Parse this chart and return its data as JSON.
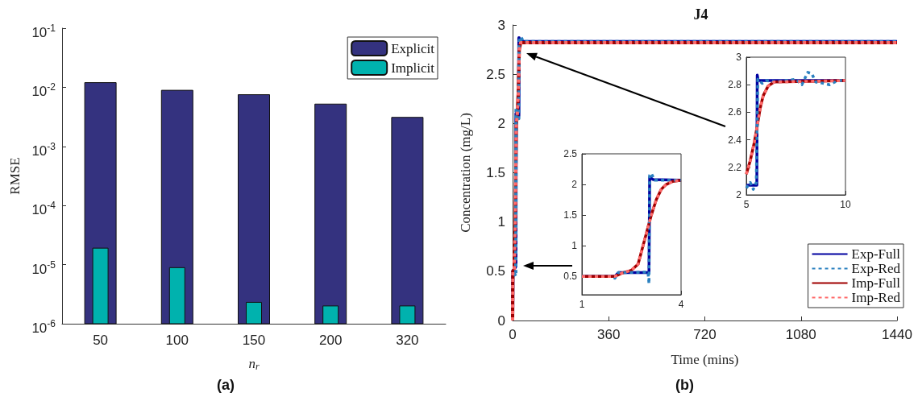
{
  "chart_data": [
    {
      "type": "bar",
      "xlabel": "n$_{r}$",
      "ylabel": "RMSE",
      "categories": [
        "50",
        "100",
        "150",
        "200",
        "320"
      ],
      "log": true,
      "ylim": [
        1e-06,
        0.1
      ],
      "yticks": [
        {
          "value": 1e-06,
          "label": "10$^{-6}$"
        },
        {
          "value": 1e-05,
          "label": "10$^{-5}$"
        },
        {
          "value": 0.0001,
          "label": "10$^{-4}$"
        },
        {
          "value": 0.001,
          "label": "10$^{-3}$"
        },
        {
          "value": 0.01,
          "label": "10$^{-2}$"
        },
        {
          "value": 0.1,
          "label": "10$^{-1}$"
        }
      ],
      "series": [
        {
          "name": "Explicit",
          "color": "#34327f",
          "values": [
            0.012,
            0.0089,
            0.0075,
            0.0052,
            0.0031
          ]
        },
        {
          "name": "Implicit",
          "color": "#00b2ae",
          "values": [
            1.9e-05,
            8.9e-06,
            2.3e-06,
            2e-06,
            2e-06
          ]
        }
      ],
      "legend": "top right",
      "annotations": [
        "(a)"
      ]
    },
    {
      "type": "line",
      "title": "J4",
      "xlabel": "Time (mins)",
      "ylabel": "Concentration (mg/L)",
      "xlim": [
        0,
        1440
      ],
      "xticks": [
        0,
        360,
        720,
        1080,
        1440
      ],
      "ylim": [
        0,
        3
      ],
      "yticks": [
        0,
        0.5,
        1,
        1.5,
        2,
        2.5,
        3
      ],
      "marker": "none",
      "legend": "bottom right",
      "annotations": [
        "(b)"
      ],
      "series": [
        {
          "name": "Exp-Full",
          "color": "#0000a0",
          "line_style": "solid",
          "x": [
            0,
            1,
            12,
            13,
            23,
            24,
            25,
            1440
          ],
          "values": [
            0,
            0.5,
            0.55,
            2.1,
            2.08,
            2.87,
            2.83,
            2.83
          ]
        },
        {
          "name": "Exp-Red",
          "color": "#2a80c0",
          "line_style": "dotted",
          "x": [
            0,
            1,
            12,
            13,
            23,
            24,
            30,
            40,
            1440
          ],
          "values": [
            0,
            0.5,
            0.45,
            2.15,
            2.05,
            2.82,
            2.88,
            2.83,
            2.83
          ]
        },
        {
          "name": "Imp-Full",
          "color": "#a00000",
          "line_style": "solid",
          "x": [
            0,
            1,
            6,
            10,
            14,
            17,
            21,
            25,
            30,
            1440
          ],
          "values": [
            0,
            0.5,
            0.52,
            1.0,
            2.0,
            2.07,
            2.3,
            2.75,
            2.82,
            2.82
          ]
        },
        {
          "name": "Imp-Red",
          "color": "#ff6a6a",
          "line_style": "dotted",
          "x": [
            0,
            1,
            6,
            10,
            14,
            17,
            21,
            25,
            30,
            1440
          ],
          "values": [
            0,
            0.5,
            0.52,
            1.0,
            2.0,
            2.07,
            2.3,
            2.75,
            2.82,
            2.82
          ]
        }
      ]
    },
    {
      "type": "line",
      "xlim": [
        1,
        4
      ],
      "xticks": [
        1,
        4
      ],
      "ylim": [
        0.2,
        2.5
      ],
      "yticks": [
        0.5,
        1,
        1.5,
        2,
        2.5
      ],
      "marker": "none",
      "series": [
        {
          "color": "#0000a0",
          "line_style": "solid",
          "x": [
            1,
            2.0,
            2.1,
            3.03,
            3.05,
            3.15,
            4
          ],
          "values": [
            0.5,
            0.5,
            0.56,
            0.56,
            2.12,
            2.08,
            2.07
          ]
        },
        {
          "color": "#2a80c0",
          "line_style": "dotted",
          "x": [
            1,
            1.9,
            2.0,
            2.1,
            3.0,
            3.03,
            3.05,
            3.1,
            3.2,
            4
          ],
          "values": [
            0.5,
            0.5,
            0.47,
            0.56,
            0.57,
            0.38,
            2.15,
            2.18,
            2.07,
            2.07
          ]
        },
        {
          "color": "#a00000",
          "line_style": "solid",
          "x": [
            1,
            2,
            2.2,
            2.5,
            2.7,
            2.85,
            3.0,
            3.1,
            3.25,
            3.4,
            3.55,
            3.75,
            4
          ],
          "values": [
            0.5,
            0.5,
            0.55,
            0.6,
            0.7,
            1.0,
            1.3,
            1.5,
            1.75,
            1.92,
            2.0,
            2.05,
            2.07
          ]
        },
        {
          "color": "#ff6a6a",
          "line_style": "dotted",
          "x": [
            1,
            2,
            2.2,
            2.5,
            2.7,
            2.85,
            3.0,
            3.1,
            3.25,
            3.4,
            3.55,
            3.75,
            4
          ],
          "values": [
            0.5,
            0.5,
            0.55,
            0.6,
            0.7,
            1.0,
            1.3,
            1.5,
            1.75,
            1.92,
            2.0,
            2.05,
            2.07
          ]
        }
      ]
    },
    {
      "type": "line",
      "xlim": [
        5,
        10
      ],
      "xticks": [
        5,
        10
      ],
      "ylim": [
        2,
        3
      ],
      "yticks": [
        2,
        2.2,
        2.4,
        2.6,
        2.8,
        3
      ],
      "marker": "none",
      "series": [
        {
          "color": "#0000a0",
          "line_style": "solid",
          "x": [
            5,
            5.53,
            5.55,
            5.6,
            10
          ],
          "values": [
            2.07,
            2.07,
            2.87,
            2.83,
            2.83
          ]
        },
        {
          "color": "#2a80c0",
          "line_style": "dotted",
          "x": [
            5,
            5.2,
            5.35,
            5.5,
            5.58,
            5.8,
            6,
            6.5,
            7,
            7.5,
            7.8,
            8.1,
            8.3,
            8.5,
            8.9,
            9.2,
            9.6,
            10
          ],
          "values": [
            2.05,
            2.09,
            2.04,
            2.09,
            2.84,
            2.81,
            2.83,
            2.82,
            2.83,
            2.84,
            2.8,
            2.89,
            2.88,
            2.82,
            2.81,
            2.8,
            2.83,
            2.83
          ]
        },
        {
          "color": "#a00000",
          "line_style": "solid",
          "x": [
            5,
            5.2,
            5.4,
            5.55,
            5.7,
            5.85,
            6.1,
            6.4,
            10
          ],
          "values": [
            2.15,
            2.25,
            2.38,
            2.5,
            2.63,
            2.72,
            2.79,
            2.82,
            2.83
          ]
        },
        {
          "color": "#ff6a6a",
          "line_style": "dotted",
          "x": [
            5,
            5.2,
            5.4,
            5.55,
            5.7,
            5.85,
            6.1,
            6.4,
            10
          ],
          "values": [
            2.15,
            2.25,
            2.38,
            2.5,
            2.63,
            2.72,
            2.79,
            2.82,
            2.83
          ]
        }
      ]
    }
  ]
}
